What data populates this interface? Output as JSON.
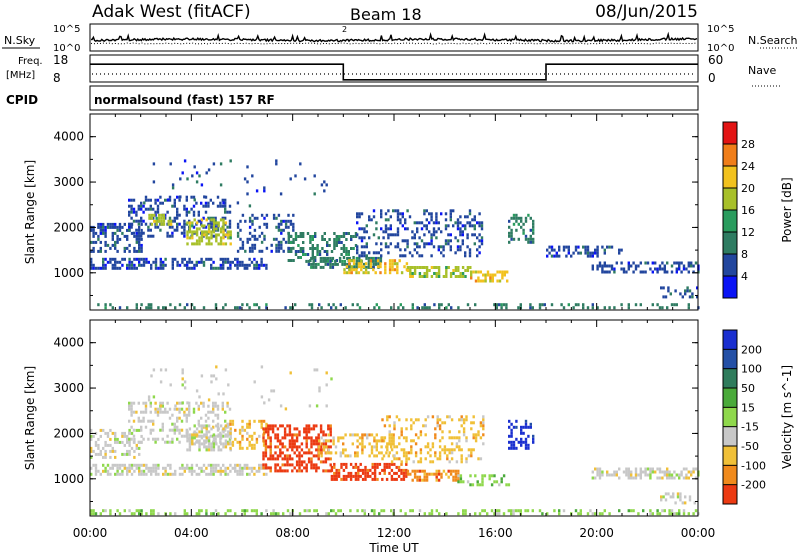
{
  "header": {
    "station": "Adak West (fitACF)",
    "beam": "Beam 18",
    "date": "08/Jun/2015"
  },
  "strips": {
    "nsky_label": "N.Sky",
    "nsearch_label": "N.Search",
    "left_ticks": [
      "10^5",
      "10^0"
    ],
    "right_ticks": [
      "10^5",
      "10^0"
    ],
    "freq_label_line1": "Freq.",
    "freq_label_line2": "[MHz]",
    "freq_ticks": [
      "18",
      "8"
    ],
    "nave_label": "Nave",
    "nave_ticks": [
      "60",
      "0"
    ],
    "cpid_label": "CPID",
    "cpid_text": "normalsound (fast) 157 RF",
    "noise_marker": "2"
  },
  "chart_data": [
    {
      "type": "heatmap",
      "title": "",
      "ylabel": "Slant Range [km]",
      "xlabel": "",
      "yticks": [
        "1000",
        "2000",
        "3000",
        "4000"
      ],
      "ylim": [
        180,
        4500
      ],
      "xlim": [
        0,
        24
      ],
      "colorbar": {
        "label": "Power [dB]",
        "ticks": [
          "4",
          "8",
          "12",
          "16",
          "20",
          "24",
          "28"
        ],
        "colors": [
          "#0a14f5",
          "#22469e",
          "#2f7c62",
          "#2a9c5e",
          "#a8c02a",
          "#f2c21e",
          "#f07e1a",
          "#e21414"
        ]
      },
      "regions": [
        {
          "t0": 0.0,
          "t1": 24.0,
          "r0": 200,
          "r1": 330,
          "level": 2,
          "density": 0.3
        },
        {
          "t0": 0.0,
          "t1": 7.0,
          "r0": 1080,
          "r1": 1330,
          "level": 1,
          "density": 0.55
        },
        {
          "t0": 0.0,
          "t1": 2.0,
          "r0": 1480,
          "r1": 2100,
          "level": 1,
          "density": 0.4
        },
        {
          "t0": 1.5,
          "t1": 5.5,
          "r0": 1800,
          "r1": 2700,
          "level": 1,
          "density": 0.35
        },
        {
          "t0": 2.3,
          "t1": 3.2,
          "r0": 2050,
          "r1": 2300,
          "level": 4,
          "density": 0.6
        },
        {
          "t0": 3.8,
          "t1": 5.6,
          "r0": 1650,
          "r1": 2200,
          "level": 4,
          "density": 0.55
        },
        {
          "t0": 5.8,
          "t1": 8.0,
          "r0": 1500,
          "r1": 2300,
          "level": 1,
          "density": 0.3
        },
        {
          "t0": 7.8,
          "t1": 10.5,
          "r0": 1300,
          "r1": 1900,
          "level": 2,
          "density": 0.45
        },
        {
          "t0": 8.5,
          "t1": 11.5,
          "r0": 1150,
          "r1": 1350,
          "level": 2,
          "density": 0.55
        },
        {
          "t0": 10.0,
          "t1": 12.5,
          "r0": 1000,
          "r1": 1300,
          "level": 5,
          "density": 0.55
        },
        {
          "t0": 12.5,
          "t1": 15.0,
          "r0": 900,
          "r1": 1150,
          "level": 4,
          "density": 0.55
        },
        {
          "t0": 15.0,
          "t1": 16.5,
          "r0": 850,
          "r1": 1050,
          "level": 5,
          "density": 0.5
        },
        {
          "t0": 10.5,
          "t1": 15.5,
          "r0": 1400,
          "r1": 2400,
          "level": 1,
          "density": 0.3
        },
        {
          "t0": 16.5,
          "t1": 17.5,
          "r0": 1650,
          "r1": 2300,
          "level": 2,
          "density": 0.4
        },
        {
          "t0": 19.8,
          "t1": 24.0,
          "r0": 1050,
          "r1": 1250,
          "level": 1,
          "density": 0.5
        },
        {
          "t0": 18.0,
          "t1": 21.0,
          "r0": 1400,
          "r1": 1600,
          "level": 1,
          "density": 0.35
        },
        {
          "t0": 22.5,
          "t1": 24.0,
          "r0": 500,
          "r1": 700,
          "level": 1,
          "density": 0.3
        },
        {
          "t0": 2.0,
          "t1": 9.5,
          "r0": 2500,
          "r1": 3500,
          "level": 1,
          "density": 0.04
        }
      ]
    },
    {
      "type": "heatmap",
      "title": "",
      "ylabel": "Slant Range [km]",
      "xlabel": "Time UT",
      "xticks": [
        "00:00",
        "04:00",
        "08:00",
        "12:00",
        "16:00",
        "20:00",
        "00:00"
      ],
      "yticks": [
        "1000",
        "2000",
        "3000",
        "4000"
      ],
      "ylim": [
        180,
        4500
      ],
      "xlim": [
        0,
        24
      ],
      "colorbar": {
        "label": "Velocity [m s^-1]",
        "ticks": [
          "200",
          "100",
          "50",
          "15",
          "-15",
          "-50",
          "-100",
          "-200"
        ],
        "colors": [
          "#1a2fd0",
          "#2450a6",
          "#2f7c5c",
          "#4aaa3a",
          "#8fd84c",
          "#c8c8c8",
          "#f0c038",
          "#f08a1c",
          "#ec3a12"
        ]
      },
      "regions": [
        {
          "t0": 0.0,
          "t1": 24.0,
          "r0": 200,
          "r1": 330,
          "level": 4,
          "density": 0.35
        },
        {
          "t0": 0.0,
          "t1": 7.0,
          "r0": 1080,
          "r1": 1330,
          "level": 5,
          "density": 0.55
        },
        {
          "t0": 0.0,
          "t1": 2.0,
          "r0": 1480,
          "r1": 2100,
          "level": 5,
          "density": 0.4
        },
        {
          "t0": 1.5,
          "t1": 5.5,
          "r0": 1800,
          "r1": 2700,
          "level": 5,
          "density": 0.35
        },
        {
          "t0": 3.8,
          "t1": 5.6,
          "r0": 1650,
          "r1": 2200,
          "level": 5,
          "density": 0.55
        },
        {
          "t0": 5.5,
          "t1": 7.0,
          "r0": 1700,
          "r1": 2300,
          "level": 6,
          "density": 0.35
        },
        {
          "t0": 6.8,
          "t1": 9.5,
          "r0": 1200,
          "r1": 2200,
          "level": 8,
          "density": 0.5
        },
        {
          "t0": 9.5,
          "t1": 12.5,
          "r0": 1000,
          "r1": 1350,
          "level": 8,
          "density": 0.6
        },
        {
          "t0": 9.0,
          "t1": 12.0,
          "r0": 1500,
          "r1": 2000,
          "level": 6,
          "density": 0.4
        },
        {
          "t0": 12.5,
          "t1": 14.5,
          "r0": 950,
          "r1": 1200,
          "level": 7,
          "density": 0.55
        },
        {
          "t0": 14.5,
          "t1": 16.5,
          "r0": 850,
          "r1": 1100,
          "level": 4,
          "density": 0.5
        },
        {
          "t0": 11.5,
          "t1": 15.5,
          "r0": 1400,
          "r1": 2400,
          "level": 6,
          "density": 0.3
        },
        {
          "t0": 16.5,
          "t1": 17.5,
          "r0": 1650,
          "r1": 2300,
          "level": 0,
          "density": 0.45
        },
        {
          "t0": 19.8,
          "t1": 24.0,
          "r0": 1050,
          "r1": 1250,
          "level": 5,
          "density": 0.5
        },
        {
          "t0": 22.5,
          "t1": 24.0,
          "r0": 500,
          "r1": 700,
          "level": 5,
          "density": 0.3
        },
        {
          "t0": 2.0,
          "t1": 9.5,
          "r0": 2500,
          "r1": 3500,
          "level": 5,
          "density": 0.04
        }
      ]
    },
    {
      "type": "line",
      "title": "",
      "series": [
        {
          "name": "",
          "x": [
            0,
            10,
            18,
            24
          ],
          "values": [
            15,
            8.5,
            15,
            15
          ]
        }
      ],
      "ylim": [
        8,
        18
      ]
    }
  ]
}
